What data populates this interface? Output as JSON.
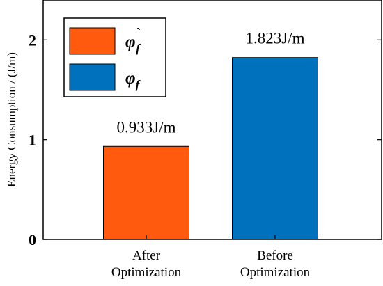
{
  "chart_data": {
    "type": "bar",
    "categories": [
      [
        "After",
        "Optimization"
      ],
      [
        "Before",
        "Optimization"
      ]
    ],
    "values": [
      0.933,
      1.823
    ],
    "data_labels": [
      "0.933J/m",
      "1.823J/m"
    ],
    "colors": [
      "#FF5A0E",
      "#0072BD"
    ],
    "ylabel": "Energy Consumption / (J/m)",
    "ylim": [
      0,
      2.4
    ],
    "yticks": [
      0,
      1,
      2
    ],
    "grid": false,
    "legend": {
      "placement": "top-left",
      "entries": [
        {
          "symbol": "φ",
          "sub": "f",
          "accent": "`",
          "color": "#FF5A0E"
        },
        {
          "symbol": "φ",
          "sub": "f",
          "accent": "",
          "color": "#0072BD"
        }
      ]
    }
  }
}
